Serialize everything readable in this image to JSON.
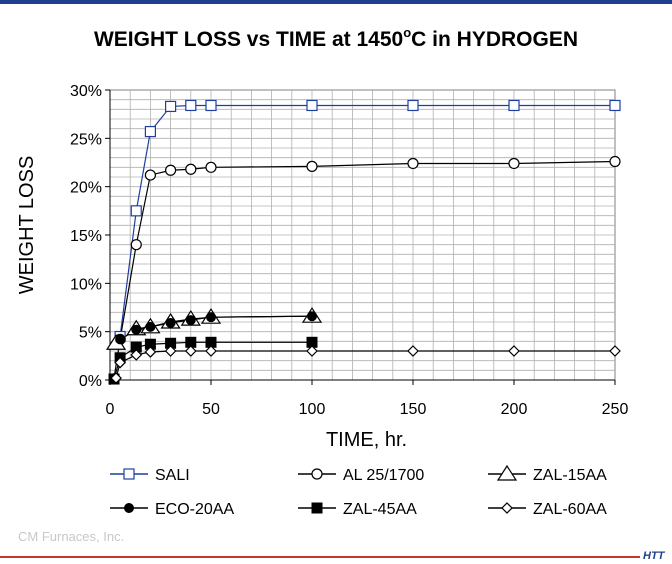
{
  "title_main": "WEIGHT LOSS vs TIME at 1450",
  "title_sup": "o",
  "title_tail": "C in HYDROGEN",
  "footer": {
    "credit": "CM Furnaces, Inc.",
    "brand": "HTT"
  },
  "chart_data": {
    "type": "line",
    "title": "WEIGHT LOSS vs TIME at 1450°C in HYDROGEN",
    "xlabel": "TIME, hr.",
    "ylabel": "WEIGHT LOSS",
    "xlim": [
      0,
      250
    ],
    "ylim": [
      0,
      30
    ],
    "x_ticks": [
      0,
      50,
      100,
      150,
      200,
      250
    ],
    "x_tick_labels": [
      "0",
      "50",
      "100",
      "150",
      "200",
      "250"
    ],
    "y_ticks": [
      0,
      5,
      10,
      15,
      20,
      25,
      30
    ],
    "y_tick_labels": [
      "0%",
      "5%",
      "10%",
      "15%",
      "20%",
      "25%",
      "30%"
    ],
    "grid": true,
    "legend_position": "bottom",
    "series": [
      {
        "name": "SALI",
        "marker": "square-open",
        "color": "#1f3fa0",
        "x": [
          5,
          13,
          20,
          30,
          40,
          50,
          100,
          150,
          200,
          250
        ],
        "y": [
          4.5,
          17.5,
          25.7,
          28.3,
          28.4,
          28.4,
          28.4,
          28.4,
          28.4,
          28.4
        ]
      },
      {
        "name": "AL 25/1700",
        "marker": "circle-open",
        "color": "#000000",
        "x": [
          5,
          13,
          20,
          30,
          40,
          50,
          100,
          150,
          200,
          250
        ],
        "y": [
          4.2,
          14.0,
          21.2,
          21.7,
          21.8,
          22.0,
          22.1,
          22.4,
          22.4,
          22.6
        ]
      },
      {
        "name": "ZAL-15AA",
        "marker": "triangle-open",
        "color": "#000000",
        "x": [
          3,
          13,
          20,
          30,
          40,
          50,
          100
        ],
        "y": [
          3.8,
          5.3,
          5.5,
          6.0,
          6.3,
          6.5,
          6.6
        ]
      },
      {
        "name": "ECO-20AA",
        "marker": "circle-filled",
        "color": "#000000",
        "x": [
          2,
          5,
          13,
          20,
          30,
          40,
          50,
          100
        ],
        "y": [
          0.2,
          4.2,
          5.2,
          5.5,
          5.9,
          6.2,
          6.5,
          6.6
        ]
      },
      {
        "name": "ZAL-45AA",
        "marker": "square-filled",
        "color": "#000000",
        "x": [
          2,
          5,
          13,
          20,
          30,
          40,
          50,
          100
        ],
        "y": [
          0.1,
          2.3,
          3.4,
          3.7,
          3.8,
          3.9,
          3.9,
          3.9
        ]
      },
      {
        "name": "ZAL-60AA",
        "marker": "diamond-open",
        "color": "#000000",
        "x": [
          3,
          5,
          13,
          20,
          30,
          40,
          50,
          100,
          150,
          200,
          250
        ],
        "y": [
          0.2,
          1.8,
          2.6,
          2.9,
          3.0,
          3.0,
          3.0,
          3.0,
          3.0,
          3.0,
          3.0
        ]
      }
    ]
  }
}
